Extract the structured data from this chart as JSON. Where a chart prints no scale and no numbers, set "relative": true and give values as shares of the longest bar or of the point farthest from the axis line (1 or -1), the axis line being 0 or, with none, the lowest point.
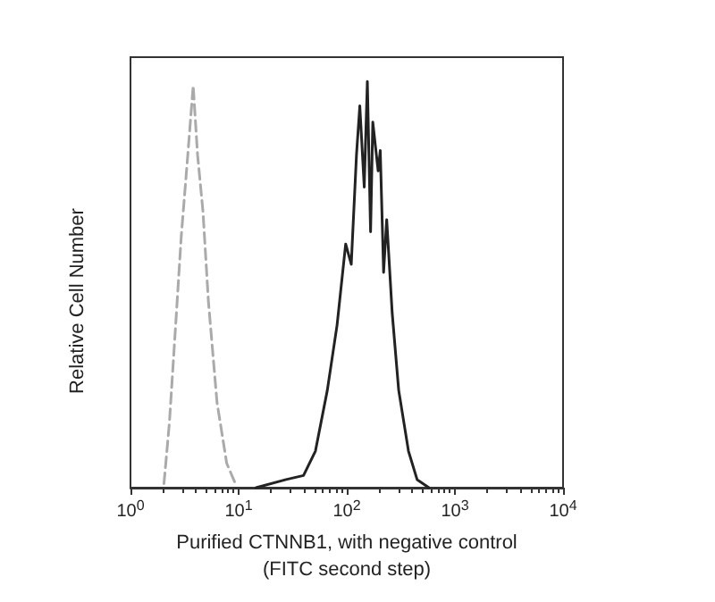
{
  "chart_data": {
    "type": "line",
    "relative": true,
    "xlabel": "Purified CTNNB1, with negative control\n(FITC second step)",
    "ylabel": "Relative Cell Number",
    "log": "x",
    "xlim": [
      1,
      10000
    ],
    "xticks": [
      {
        "value": 1,
        "label": "10$^{0}$"
      },
      {
        "value": 10,
        "label": "10$^{1}$"
      },
      {
        "value": 100,
        "label": "10$^{2}$"
      },
      {
        "value": 1000,
        "label": "10$^{3}$"
      },
      {
        "value": 10000,
        "label": "10$^{4}$"
      }
    ],
    "grid": false,
    "marker": "none",
    "series": [
      {
        "color": "#aaaaaa",
        "line_style": "dashed",
        "x": [
          2.04,
          2.29,
          2.63,
          2.95,
          3.39,
          3.8,
          4.17,
          4.68,
          5.25,
          6.31,
          7.76,
          9.33
        ],
        "values": [
          0.01,
          0.16,
          0.41,
          0.62,
          0.82,
          0.99,
          0.82,
          0.68,
          0.46,
          0.21,
          0.06,
          0.01
        ]
      },
      {
        "color": "#222222",
        "line_style": "solid",
        "x": [
          14.5,
          27.5,
          39.8,
          51.3,
          66.1,
          81.3,
          97.7,
          110,
          123,
          132,
          145,
          155,
          166,
          174,
          195,
          204,
          219,
          234,
          263,
          302,
          372,
          447,
          575
        ],
        "values": [
          0,
          0.02,
          0.03,
          0.09,
          0.24,
          0.4,
          0.6,
          0.55,
          0.82,
          0.94,
          0.74,
          1,
          0.63,
          0.9,
          0.78,
          0.83,
          0.53,
          0.66,
          0.43,
          0.24,
          0.09,
          0.02,
          0
        ]
      }
    ]
  }
}
